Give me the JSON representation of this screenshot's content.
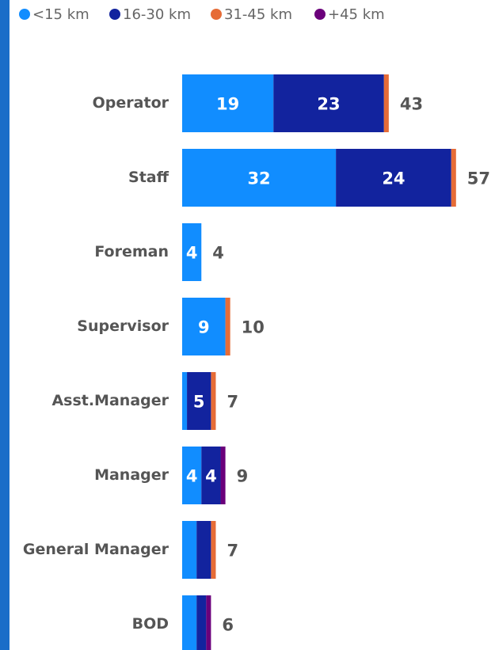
{
  "chart_data": {
    "type": "stacked-bar-horizontal",
    "categories": [
      "Operator",
      "Staff",
      "Foreman",
      "Supervisor",
      "Asst.Manager",
      "Manager",
      "General Manager",
      "BOD"
    ],
    "series": [
      {
        "name": "<15 km",
        "color": "#118dff",
        "values": [
          19,
          32,
          4,
          9,
          1,
          4,
          3,
          3
        ]
      },
      {
        "name": "16-30 km",
        "color": "#12239e",
        "values": [
          23,
          24,
          0,
          0,
          5,
          4,
          3,
          2
        ]
      },
      {
        "name": "31-45 km",
        "color": "#e66c37",
        "values": [
          1,
          1,
          0,
          1,
          1,
          0,
          1,
          0
        ]
      },
      {
        "name": "+45 km",
        "color": "#6b007b",
        "values": [
          0,
          0,
          0,
          0,
          0,
          1,
          0,
          1
        ]
      }
    ],
    "totals": [
      43,
      57,
      4,
      10,
      7,
      9,
      7,
      6
    ],
    "xlim": [
      0,
      60
    ]
  }
}
